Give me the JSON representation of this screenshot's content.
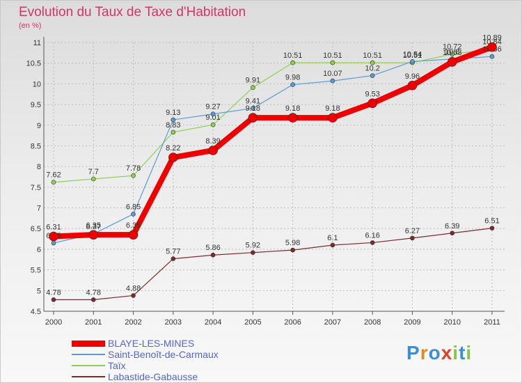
{
  "title": "Evolution du Taux de Taxe d'Habitation",
  "subtitle": "(en %)",
  "logo": {
    "text": "Proxiti",
    "colors": [
      "#3a8fd8",
      "#e08a1e",
      "#3a8fd8",
      "#e0402a",
      "#8bc34a",
      "#3a8fd8",
      "#8bc34a"
    ]
  },
  "chart_data": {
    "type": "line",
    "title": "Evolution du Taux de Taxe d'Habitation",
    "ylabel": "(en %)",
    "x": [
      "2000",
      "2001",
      "2002",
      "2003",
      "2004",
      "2005",
      "2006",
      "2007",
      "2008",
      "2009",
      "2010",
      "2011"
    ],
    "ylim": [
      4.5,
      11
    ],
    "yticks": [
      4.5,
      5,
      5.5,
      6,
      6.5,
      7,
      7.5,
      8,
      8.5,
      9,
      9.5,
      10,
      10.5,
      11
    ],
    "ytick_labels": [
      "4.5",
      "5",
      "5.5",
      "6",
      "6.5",
      "7",
      "7.5",
      "8",
      "8.5",
      "9",
      "9.5",
      "10",
      "10.5",
      "11"
    ],
    "grid": true,
    "legend_position": "bottom-left",
    "series": [
      {
        "name": "BLAYE-LES-MINES",
        "color": "#ee0000",
        "values": [
          6.31,
          6.35,
          6.35,
          8.22,
          8.39,
          9.18,
          9.18,
          9.18,
          9.53,
          9.96,
          10.53,
          10.89
        ],
        "labels": [
          "6.31",
          "6.35",
          "6.35",
          "8.22",
          "8.39",
          "9.18",
          "9.18",
          "9.18",
          "9.53",
          "9.96",
          "10.53",
          "10.89"
        ]
      },
      {
        "name": "Saint-Benoît-de-Carmaux",
        "color": "#5b9bd5",
        "values": [
          6.15,
          6.37,
          6.85,
          9.13,
          9.27,
          9.41,
          9.98,
          10.07,
          10.2,
          10.54,
          10.6,
          10.66
        ],
        "labels": [
          "6.15",
          "6.37",
          "6.85",
          "9.13",
          "9.27",
          "9.41",
          "9.98",
          "10.07",
          "10.2",
          "10.54",
          "10.6",
          "10.66"
        ]
      },
      {
        "name": "Taïx",
        "color": "#8fd14f",
        "values": [
          7.62,
          7.7,
          7.78,
          8.83,
          9.01,
          9.91,
          10.51,
          10.51,
          10.51,
          10.51,
          10.72,
          10.84
        ],
        "labels": [
          "7.62",
          "7.7",
          "7.78",
          "8.83",
          "9.01",
          "9.91",
          "10.51",
          "10.51",
          "10.51",
          "10.51",
          "10.72",
          "10.84"
        ]
      },
      {
        "name": "Labastide-Gabausse",
        "color": "#7b2b2b",
        "values": [
          4.78,
          4.78,
          4.88,
          5.77,
          5.86,
          5.92,
          5.98,
          6.1,
          6.16,
          6.27,
          6.39,
          6.51
        ],
        "labels": [
          "4.78",
          "4.78",
          "4.88",
          "5.77",
          "5.86",
          "5.92",
          "5.98",
          "6.1",
          "6.16",
          "6.27",
          "6.39",
          "6.51"
        ]
      }
    ]
  }
}
